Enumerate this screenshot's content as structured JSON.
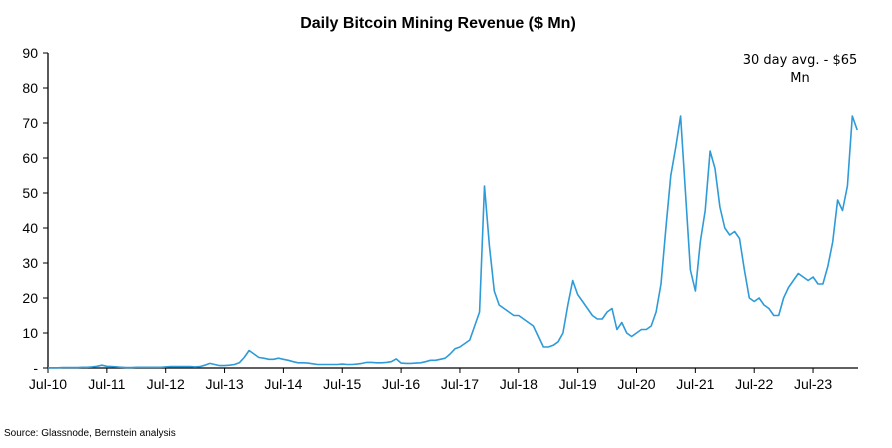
{
  "chart_data": {
    "type": "line",
    "title": "Daily Bitcoin Mining Revenue ($ Mn)",
    "xlabel": "",
    "ylabel": "",
    "ylim": [
      0,
      90
    ],
    "yticks": [
      "-",
      "10",
      "20",
      "30",
      "40",
      "50",
      "60",
      "70",
      "80",
      "90"
    ],
    "ytick_values": [
      0,
      10,
      20,
      30,
      40,
      50,
      60,
      70,
      80,
      90
    ],
    "xticks": [
      "Jul-10",
      "Jul-11",
      "Jul-12",
      "Jul-13",
      "Jul-14",
      "Jul-15",
      "Jul-16",
      "Jul-17",
      "Jul-18",
      "Jul-19",
      "Jul-20",
      "Jul-21",
      "Jul-22",
      "Jul-23"
    ],
    "xtick_dates": [
      "2010-07",
      "2011-07",
      "2012-07",
      "2013-07",
      "2014-07",
      "2015-07",
      "2016-07",
      "2017-07",
      "2018-07",
      "2019-07",
      "2020-07",
      "2021-07",
      "2022-07",
      "2023-07"
    ],
    "grid": false,
    "legend": "none",
    "line_color": "#2E9BD8",
    "annotation": {
      "line1": "30 day avg. - $65",
      "line2": "Mn"
    },
    "series": [
      {
        "x": [
          "2010-07",
          "2010-08",
          "2010-09",
          "2010-10",
          "2010-11",
          "2010-12",
          "2011-01",
          "2011-02",
          "2011-03",
          "2011-04",
          "2011-05",
          "2011-06",
          "2011-07",
          "2011-08",
          "2011-09",
          "2011-10",
          "2011-11",
          "2011-12",
          "2012-01",
          "2012-02",
          "2012-03",
          "2012-04",
          "2012-05",
          "2012-06",
          "2012-07",
          "2012-08",
          "2012-09",
          "2012-10",
          "2012-11",
          "2012-12",
          "2013-01",
          "2013-02",
          "2013-03",
          "2013-04",
          "2013-05",
          "2013-06",
          "2013-07",
          "2013-08",
          "2013-09",
          "2013-10",
          "2013-11",
          "2013-12",
          "2014-01",
          "2014-02",
          "2014-03",
          "2014-04",
          "2014-05",
          "2014-06",
          "2014-07",
          "2014-08",
          "2014-09",
          "2014-10",
          "2014-11",
          "2014-12",
          "2015-01",
          "2015-02",
          "2015-03",
          "2015-04",
          "2015-05",
          "2015-06",
          "2015-07",
          "2015-08",
          "2015-09",
          "2015-10",
          "2015-11",
          "2015-12",
          "2016-01",
          "2016-02",
          "2016-03",
          "2016-04",
          "2016-05",
          "2016-06",
          "2016-07",
          "2016-08",
          "2016-09",
          "2016-10",
          "2016-11",
          "2016-12",
          "2017-01",
          "2017-02",
          "2017-03",
          "2017-04",
          "2017-05",
          "2017-06",
          "2017-07",
          "2017-08",
          "2017-09",
          "2017-10",
          "2017-11",
          "2017-12",
          "2018-01",
          "2018-02",
          "2018-03",
          "2018-04",
          "2018-05",
          "2018-06",
          "2018-07",
          "2018-08",
          "2018-09",
          "2018-10",
          "2018-11",
          "2018-12",
          "2019-01",
          "2019-02",
          "2019-03",
          "2019-04",
          "2019-05",
          "2019-06",
          "2019-07",
          "2019-08",
          "2019-09",
          "2019-10",
          "2019-11",
          "2019-12",
          "2020-01",
          "2020-02",
          "2020-03",
          "2020-04",
          "2020-05",
          "2020-06",
          "2020-07",
          "2020-08",
          "2020-09",
          "2020-10",
          "2020-11",
          "2020-12",
          "2021-01",
          "2021-02",
          "2021-03",
          "2021-04",
          "2021-05",
          "2021-06",
          "2021-07",
          "2021-08",
          "2021-09",
          "2021-10",
          "2021-11",
          "2021-12",
          "2022-01",
          "2022-02",
          "2022-03",
          "2022-04",
          "2022-05",
          "2022-06",
          "2022-07",
          "2022-08",
          "2022-09",
          "2022-10",
          "2022-11",
          "2022-12",
          "2023-01",
          "2023-02",
          "2023-03",
          "2023-04",
          "2023-05",
          "2023-06",
          "2023-07",
          "2023-08",
          "2023-09",
          "2023-10",
          "2023-11",
          "2023-12",
          "2024-01",
          "2024-02",
          "2024-03",
          "2024-04"
        ],
        "values": [
          0.05,
          0.05,
          0.05,
          0.1,
          0.1,
          0.1,
          0.1,
          0.2,
          0.2,
          0.3,
          0.5,
          0.8,
          0.5,
          0.4,
          0.3,
          0.2,
          0.1,
          0.1,
          0.2,
          0.2,
          0.2,
          0.2,
          0.2,
          0.2,
          0.3,
          0.4,
          0.4,
          0.4,
          0.4,
          0.4,
          0.3,
          0.4,
          0.8,
          1.3,
          1.0,
          0.7,
          0.7,
          0.8,
          1.0,
          1.5,
          3.0,
          5.0,
          4.0,
          3.0,
          2.8,
          2.5,
          2.5,
          2.8,
          2.5,
          2.2,
          1.8,
          1.5,
          1.5,
          1.4,
          1.2,
          1.0,
          1.0,
          1.0,
          1.0,
          1.0,
          1.1,
          1.0,
          1.0,
          1.1,
          1.3,
          1.6,
          1.6,
          1.5,
          1.5,
          1.6,
          1.8,
          2.6,
          1.4,
          1.3,
          1.3,
          1.4,
          1.5,
          1.8,
          2.2,
          2.2,
          2.5,
          2.8,
          4.0,
          5.5,
          6.0,
          7.0,
          8.0,
          12.0,
          16.0,
          52.0,
          35,
          22,
          18,
          17,
          16,
          15,
          15,
          14,
          13,
          12,
          9,
          6,
          6,
          6.5,
          7.5,
          10,
          18,
          25,
          21,
          19,
          17,
          15,
          14,
          14,
          16,
          17,
          11,
          13,
          10,
          9,
          10,
          11,
          11,
          12,
          16,
          24,
          40,
          55,
          63,
          72,
          50,
          28,
          22,
          36,
          45,
          62,
          57,
          46,
          40,
          38,
          39,
          37,
          28,
          20,
          19,
          20,
          18,
          17,
          15,
          15,
          20,
          23,
          25,
          27,
          26,
          25,
          26,
          24,
          24,
          29,
          36,
          48,
          45,
          52,
          72,
          68
        ]
      }
    ]
  },
  "footer": {
    "source": "Source: Glassnode, Bernstein analysis"
  }
}
